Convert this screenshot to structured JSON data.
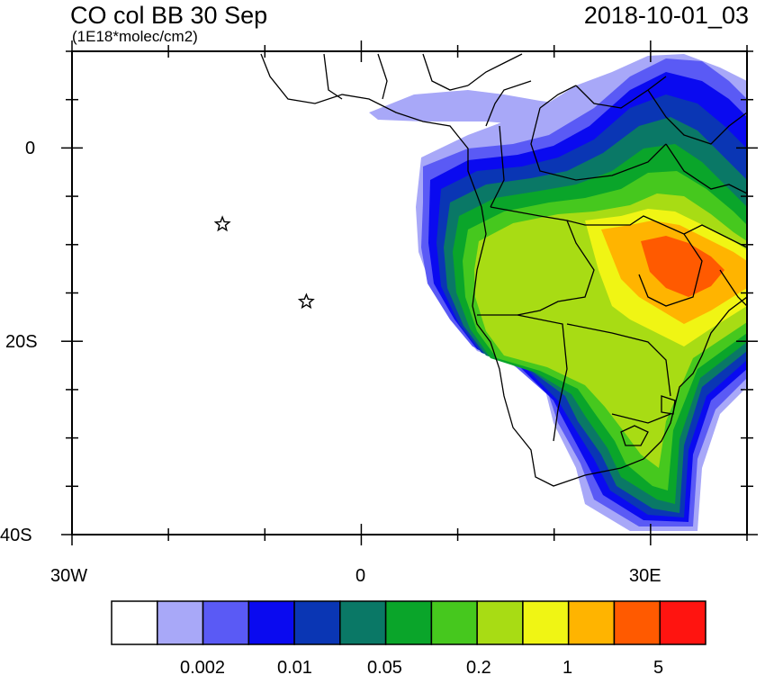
{
  "header": {
    "title": "CO col BB 30 Sep",
    "units": "(1E18*molec/cm2)",
    "datetime": "2018-10-01_03"
  },
  "axes": {
    "y_labels": [
      "0",
      "20S",
      "40S"
    ],
    "x_labels": [
      "30W",
      "0",
      "30E"
    ],
    "lon_range": [
      -30,
      40
    ],
    "lat_range": [
      -40,
      10
    ]
  },
  "markers": [
    {
      "name": "star-marker",
      "lon": -14.4,
      "lat": -7.9
    },
    {
      "name": "star-marker",
      "lon": -5.7,
      "lat": -15.9
    }
  ],
  "colorbar": {
    "colors": [
      "#ffffff",
      "#a8a8f8",
      "#5a5af5",
      "#0a0af0",
      "#0a36b4",
      "#0a7866",
      "#0aa52a",
      "#46c81e",
      "#a8dc14",
      "#f0f514",
      "#ffb400",
      "#ff5a00",
      "#ff1410"
    ],
    "labels": [
      "0.002",
      "0.01",
      "0.05",
      "0.2",
      "1",
      "5"
    ]
  }
}
